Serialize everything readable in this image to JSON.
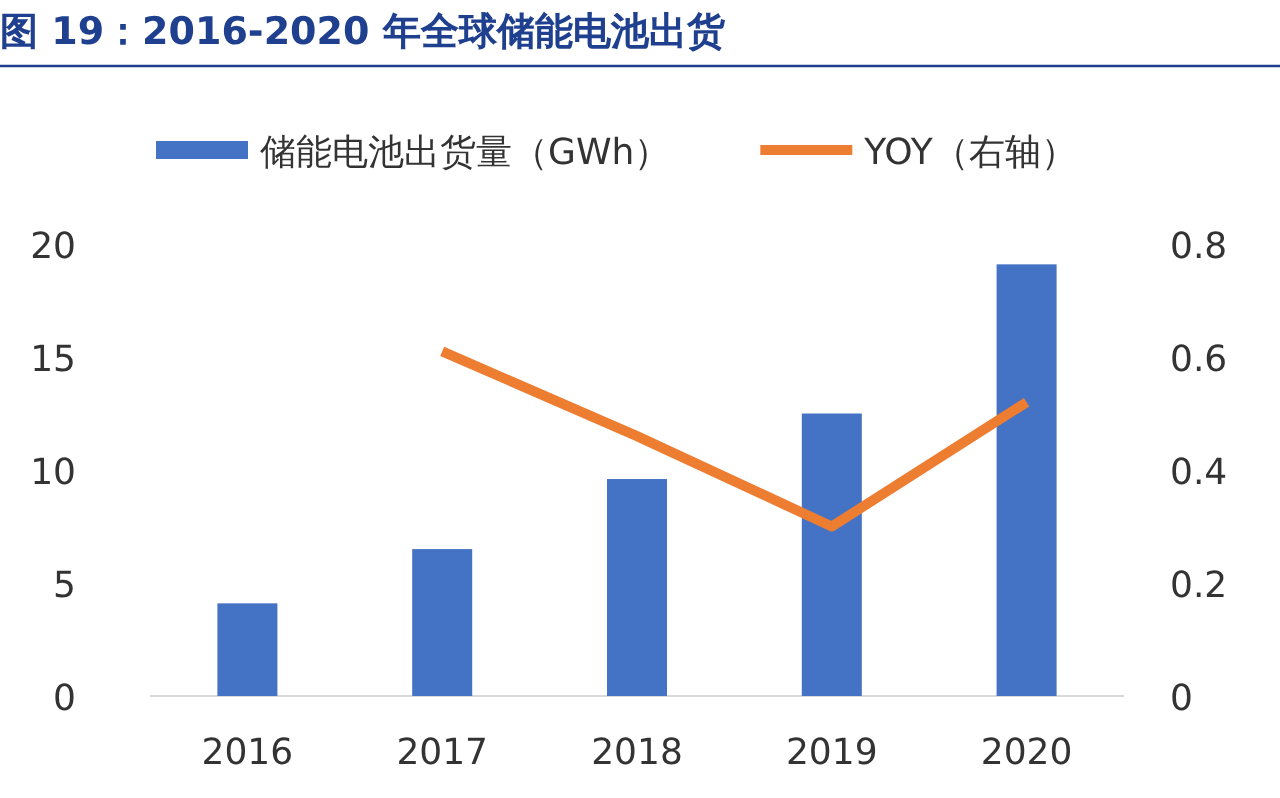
{
  "chart_data": {
    "type": "bar",
    "title": "图 19：2016-2020 年全球储能电池出货",
    "categories": [
      "2016",
      "2017",
      "2018",
      "2019",
      "2020"
    ],
    "series": [
      {
        "name": "储能电池出货量（GWh）",
        "color": "#4472c4",
        "values": [
          4.1,
          6.5,
          9.6,
          12.5,
          19.1
        ]
      },
      {
        "name": "YOY（右轴）",
        "type": "line",
        "axis": "y2",
        "color": "#ed7d31",
        "values": [
          null,
          0.61,
          0.46,
          0.3,
          0.52
        ]
      }
    ],
    "ylim": [
      0,
      20
    ],
    "yticks": [
      0,
      5,
      10,
      15,
      20
    ],
    "y2lim": [
      0,
      0.8
    ],
    "y2ticks": [
      0,
      0.2,
      0.4,
      0.6,
      0.8
    ],
    "legend": "top",
    "grid": false,
    "marker": "none",
    "line_style": "solid"
  }
}
